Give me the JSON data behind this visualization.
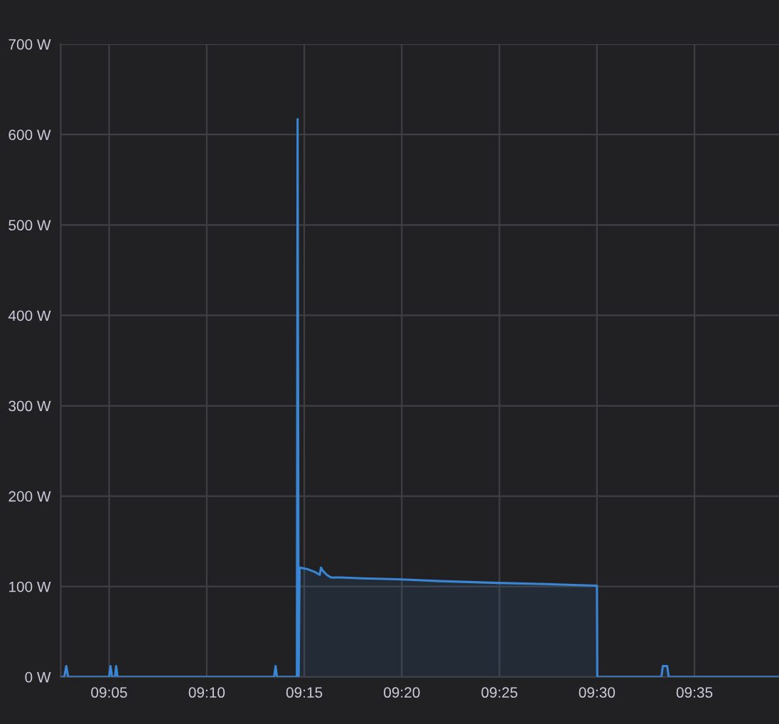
{
  "chart_data": {
    "type": "area",
    "x": [
      9.0425,
      9.045,
      9.0467,
      9.0483,
      9.0833,
      9.0845,
      9.0858,
      9.0883,
      9.0893,
      9.0905,
      9.2242,
      9.2255,
      9.2267,
      9.2437,
      9.2443,
      9.2452,
      9.246,
      9.2533,
      9.2592,
      9.2632,
      9.2643,
      9.2655,
      9.2692,
      9.2728,
      9.2817,
      9.3,
      9.33,
      9.3667,
      9.415,
      9.45,
      9.475,
      9.5,
      9.5003,
      9.555,
      9.5563,
      9.56,
      9.5613,
      9.655
    ],
    "series": [
      {
        "color": "#3a86d4",
        "values": [
          0,
          0,
          12,
          0,
          0,
          12,
          0,
          0,
          12,
          0,
          0,
          12,
          0,
          0,
          617,
          0,
          121,
          119,
          116,
          113,
          121,
          118,
          113,
          110,
          110,
          109,
          108,
          106,
          104,
          103,
          102,
          101,
          0,
          0,
          12,
          12,
          0,
          0
        ]
      }
    ],
    "xlim": [
      9.042,
      9.6555
    ],
    "xticks": [
      {
        "value": 9.0833,
        "label": "09:05"
      },
      {
        "value": 9.1667,
        "label": "09:10"
      },
      {
        "value": 9.25,
        "label": "09:15"
      },
      {
        "value": 9.3333,
        "label": "09:20"
      },
      {
        "value": 9.4167,
        "label": "09:25"
      },
      {
        "value": 9.5,
        "label": "09:30"
      },
      {
        "value": 9.5833,
        "label": "09:35"
      }
    ],
    "ylim": [
      0,
      700
    ],
    "yticks": [
      {
        "value": 0,
        "label": "0 W"
      },
      {
        "value": 100,
        "label": "100 W"
      },
      {
        "value": 200,
        "label": "200 W"
      },
      {
        "value": 300,
        "label": "300 W"
      },
      {
        "value": 400,
        "label": "400 W"
      },
      {
        "value": 500,
        "label": "500 W"
      },
      {
        "value": 600,
        "label": "600 W"
      },
      {
        "value": 700,
        "label": "700 W"
      }
    ],
    "grid": true
  }
}
